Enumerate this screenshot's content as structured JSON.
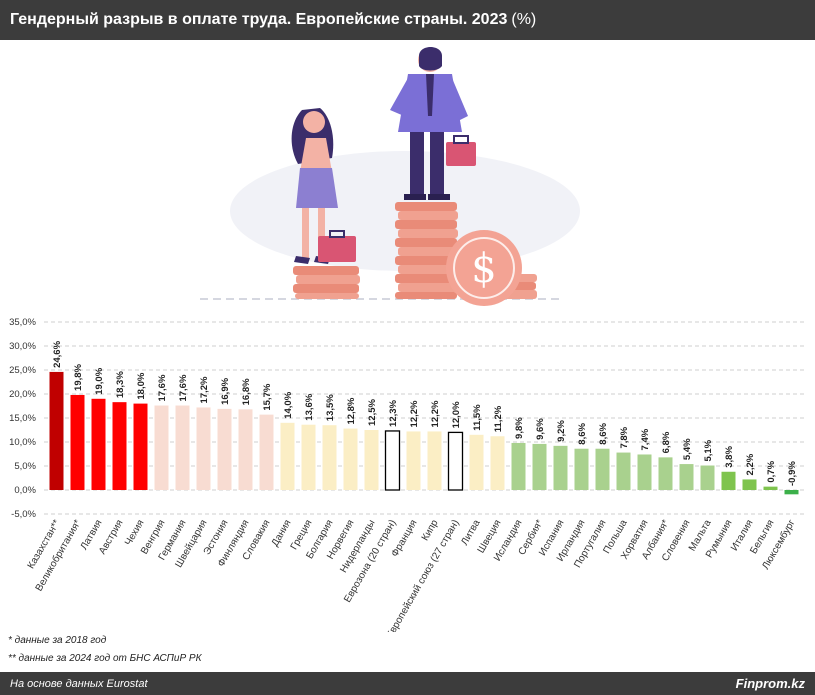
{
  "header": {
    "title": "Гендерный разрыв в оплате труда. Европейские страны. 2023",
    "unit": "(%)"
  },
  "chart_data": {
    "type": "bar",
    "title": "Гендерный разрыв в оплате труда. Европейские страны. 2023 (%)",
    "categories": [
      "Казахстан**",
      "Великобритания*",
      "Латвия",
      "Австрия",
      "Чехия",
      "Венгрия",
      "Германия",
      "Швейцария",
      "Эстония",
      "Финляндия",
      "Словакия",
      "Дания",
      "Греция",
      "Болгария",
      "Норвегия",
      "Нидерланды",
      "Еврозона (20 стран)",
      "Франция",
      "Кипр",
      "Европейский союз (27 стран)",
      "Литва",
      "Швеция",
      "Исландия",
      "Сербия*",
      "Испания",
      "Ирландия",
      "Португалия",
      "Польша",
      "Хорватия",
      "Албания*",
      "Словения",
      "Мальта",
      "Румыния",
      "Италия",
      "Бельгия",
      "Люксембург"
    ],
    "values": [
      24.6,
      19.8,
      19.0,
      18.3,
      18.0,
      17.6,
      17.6,
      17.2,
      16.9,
      16.8,
      15.7,
      14.0,
      13.6,
      13.5,
      12.8,
      12.5,
      12.3,
      12.2,
      12.2,
      12.0,
      11.5,
      11.2,
      9.8,
      9.6,
      9.2,
      8.6,
      8.6,
      7.8,
      7.4,
      6.8,
      5.4,
      5.1,
      3.8,
      2.2,
      0.7,
      -0.9
    ],
    "value_labels": [
      "24,6%",
      "19,8%",
      "19,0%",
      "18,3%",
      "18,0%",
      "17,6%",
      "17,6%",
      "17,2%",
      "16,9%",
      "16,8%",
      "15,7%",
      "14,0%",
      "13,6%",
      "13,5%",
      "12,8%",
      "12,5%",
      "12,3%",
      "12,2%",
      "12,2%",
      "12,0%",
      "11,5%",
      "11,2%",
      "9,8%",
      "9,6%",
      "9,2%",
      "8,6%",
      "8,6%",
      "7,8%",
      "7,4%",
      "6,8%",
      "5,4%",
      "5,1%",
      "3,8%",
      "2,2%",
      "0,7%",
      "-0,9%"
    ],
    "highlighted": [
      "Еврозона (20 стран)",
      "Европейский союз (27 стран)"
    ],
    "ylim": [
      -5,
      35
    ],
    "yticks": [
      "-5,0%",
      "0,0%",
      "5,0%",
      "10,0%",
      "15,0%",
      "20,0%",
      "25,0%",
      "30,0%",
      "35,0%"
    ],
    "grid": true,
    "colors": {
      "dark_red": "#c00000",
      "red": "#ff0000",
      "pink": "#f8dcd2",
      "cream": "#fbeec5",
      "light_green": "#a9d18e",
      "green": "#7fc44e",
      "dark_green": "#3cb04a"
    },
    "color_groups": [
      "dark_red",
      "red",
      "red",
      "red",
      "red",
      "pink",
      "pink",
      "pink",
      "pink",
      "pink",
      "pink",
      "cream",
      "cream",
      "cream",
      "cream",
      "cream",
      "cream",
      "cream",
      "cream",
      "cream",
      "cream",
      "cream",
      "light_green",
      "light_green",
      "light_green",
      "light_green",
      "light_green",
      "light_green",
      "light_green",
      "light_green",
      "light_green",
      "light_green",
      "green",
      "green",
      "green",
      "dark_green"
    ]
  },
  "notes": {
    "note1": "* данные за 2018 год",
    "note2": "** данные за 2024 год от БНС АСПиР РК"
  },
  "footer": {
    "source": "На основе данных Eurostat",
    "brand": "Finprom.kz"
  }
}
